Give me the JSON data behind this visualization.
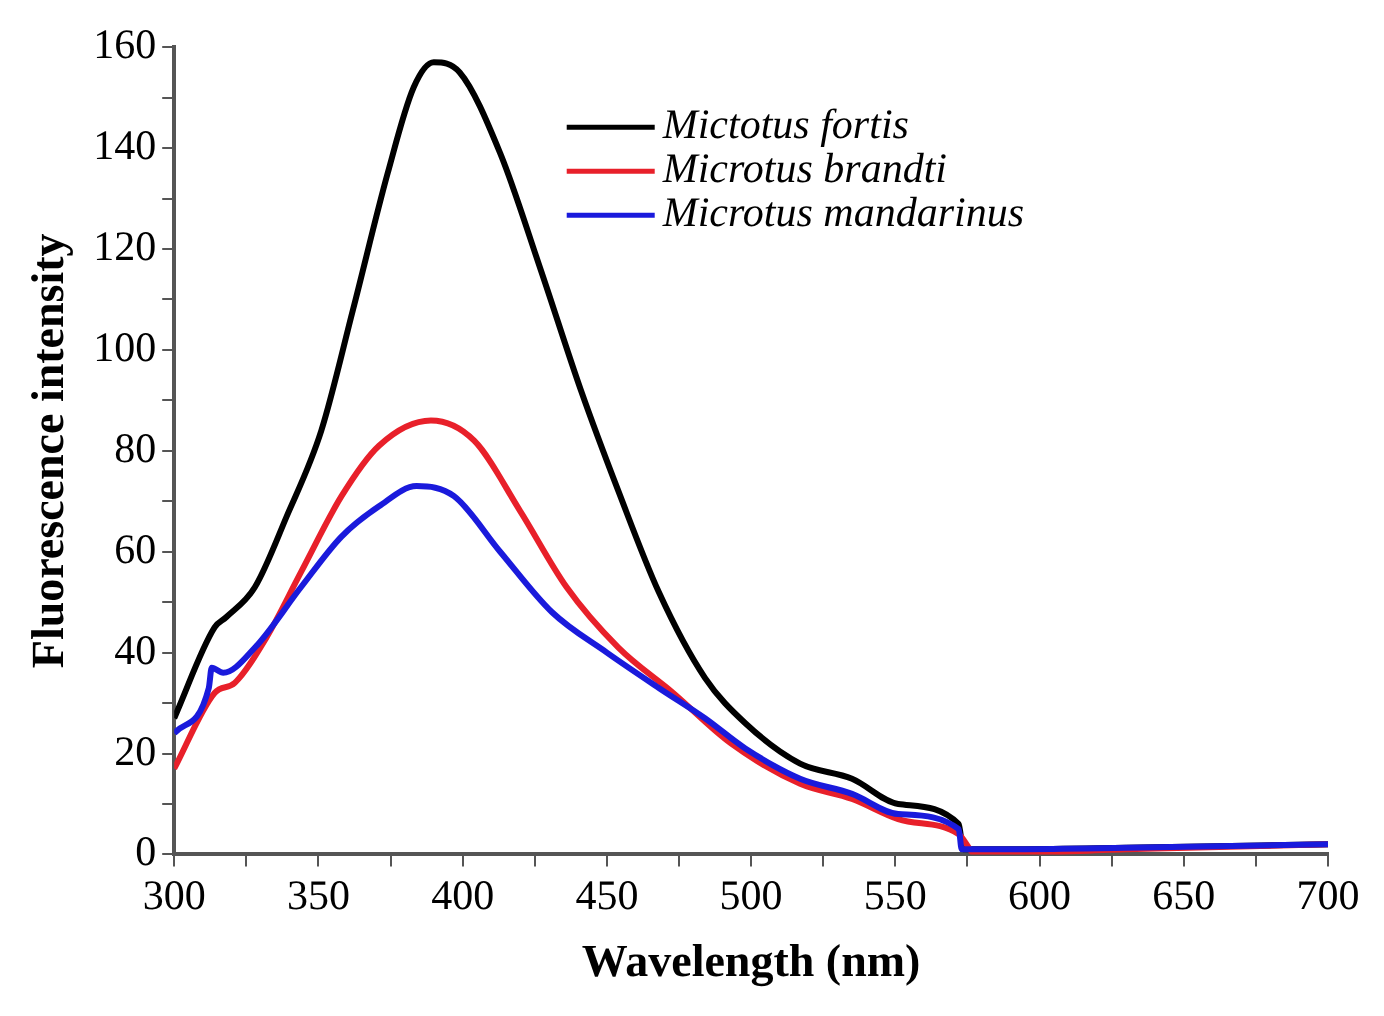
{
  "chart_data": {
    "type": "line",
    "xlabel": "Wavelength (nm)",
    "ylabel": "Fluorescence intensity",
    "xlim": [
      300,
      700
    ],
    "ylim": [
      0,
      160
    ],
    "xticks": [
      300,
      {
        "value": 325,
        "label": null
      },
      350,
      {
        "value": 375,
        "label": null
      },
      400,
      {
        "value": 425,
        "label": null
      },
      450,
      {
        "value": 475,
        "label": null
      },
      500,
      {
        "value": 525,
        "label": null
      },
      550,
      {
        "value": 575,
        "label": null
      },
      600,
      {
        "value": 625,
        "label": null
      },
      650,
      {
        "value": 675,
        "label": null
      },
      700
    ],
    "yticks": [
      0,
      {
        "value": 10,
        "label": null
      },
      20,
      {
        "value": 30,
        "label": null
      },
      40,
      {
        "value": 50,
        "label": null
      },
      60,
      {
        "value": 70,
        "label": null
      },
      80,
      {
        "value": 90,
        "label": null
      },
      100,
      {
        "value": 110,
        "label": null
      },
      120,
      {
        "value": 130,
        "label": null
      },
      140,
      {
        "value": 150,
        "label": null
      },
      160
    ],
    "grid": false,
    "legend": "top right",
    "marker": "none",
    "line_style": "solid",
    "series": [
      {
        "name": "Mictotus fortis",
        "color": "#000000",
        "x": [
          300,
          314,
          318,
          328,
          339,
          351,
          362,
          374,
          383,
          390,
          399,
          413,
          427,
          441,
          454,
          468,
          484,
          498,
          517,
          535,
          551,
          572,
          573.5,
          584,
          630,
          700
        ],
        "values": [
          27,
          45,
          47,
          53,
          67,
          84,
          108,
          135,
          152,
          157,
          155,
          139,
          116,
          92,
          72,
          52,
          35,
          26,
          18,
          15,
          10,
          6,
          1,
          1,
          1.3,
          2
        ]
      },
      {
        "name": "Microtus brandti",
        "color": "#e8202a",
        "x": [
          300,
          314,
          321,
          332,
          344,
          358,
          371,
          389,
          404,
          420,
          436,
          454,
          473,
          493,
          517,
          535,
          551,
          572,
          578,
          630,
          700
        ],
        "values": [
          17,
          32,
          34,
          43,
          56,
          71,
          81,
          86,
          82,
          68,
          53,
          41,
          32,
          22,
          14,
          11,
          7,
          4,
          0,
          1,
          2
        ]
      },
      {
        "name": "Microtus mandarinus",
        "color": "#1a1adc",
        "x": [
          300,
          312,
          313,
          317,
          328,
          344,
          358,
          371,
          384,
          397,
          413,
          431,
          450,
          468,
          484,
          498,
          517,
          535,
          551,
          572,
          573,
          584,
          630,
          700
        ],
        "values": [
          24,
          33,
          37,
          36,
          41,
          53,
          63,
          69,
          73,
          71,
          60,
          48,
          40,
          33,
          27,
          21,
          15,
          12,
          8,
          5,
          1,
          1,
          1.3,
          2
        ]
      }
    ]
  }
}
